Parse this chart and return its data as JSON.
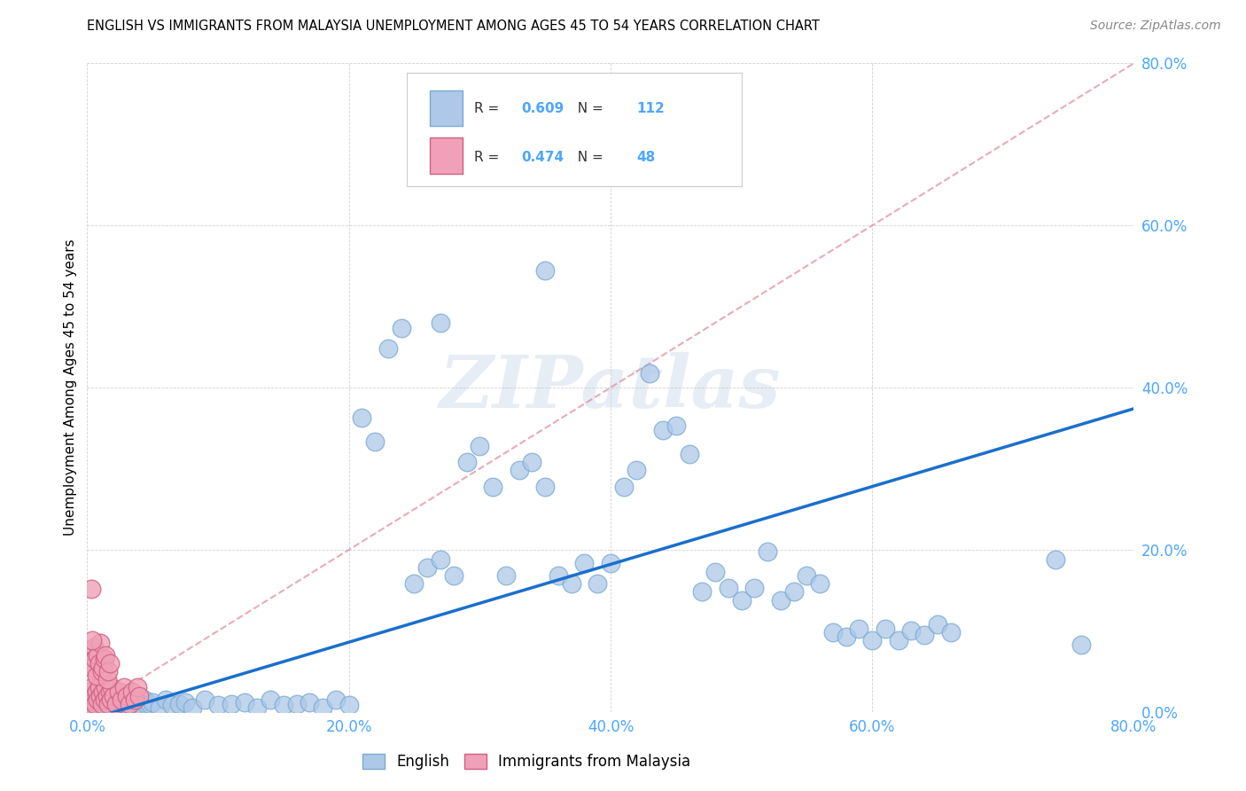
{
  "title": "ENGLISH VS IMMIGRANTS FROM MALAYSIA UNEMPLOYMENT AMONG AGES 45 TO 54 YEARS CORRELATION CHART",
  "source": "Source: ZipAtlas.com",
  "tick_color": "#4da6ff",
  "ylabel": "Unemployment Among Ages 45 to 54 years",
  "xlim": [
    0.0,
    0.8
  ],
  "ylim": [
    0.0,
    0.8
  ],
  "tick_labels": [
    "0.0%",
    "20.0%",
    "40.0%",
    "60.0%",
    "80.0%"
  ],
  "tick_vals": [
    0.0,
    0.2,
    0.4,
    0.6,
    0.8
  ],
  "english_color": "#adc8e8",
  "english_edge_color": "#7aaad0",
  "immigrant_color": "#f0a0b8",
  "immigrant_edge_color": "#d06080",
  "regression_english_color": "#1a6fcc",
  "regression_immigrant_color": "#e08898",
  "R_english": 0.609,
  "N_english": 112,
  "R_immigrant": 0.474,
  "N_immigrant": 48,
  "watermark": "ZIPatlas",
  "english_scatter_x": [
    0.001,
    0.002,
    0.003,
    0.003,
    0.004,
    0.004,
    0.005,
    0.005,
    0.006,
    0.006,
    0.007,
    0.007,
    0.008,
    0.008,
    0.009,
    0.009,
    0.01,
    0.01,
    0.011,
    0.012,
    0.013,
    0.014,
    0.015,
    0.016,
    0.017,
    0.018,
    0.019,
    0.02,
    0.021,
    0.022,
    0.024,
    0.026,
    0.028,
    0.03,
    0.032,
    0.034,
    0.036,
    0.038,
    0.04,
    0.042,
    0.044,
    0.046,
    0.048,
    0.05,
    0.055,
    0.06,
    0.065,
    0.07,
    0.075,
    0.08,
    0.09,
    0.1,
    0.11,
    0.12,
    0.13,
    0.14,
    0.15,
    0.16,
    0.17,
    0.18,
    0.19,
    0.2,
    0.21,
    0.22,
    0.23,
    0.24,
    0.25,
    0.26,
    0.27,
    0.28,
    0.29,
    0.3,
    0.31,
    0.32,
    0.33,
    0.34,
    0.35,
    0.36,
    0.37,
    0.38,
    0.39,
    0.4,
    0.41,
    0.42,
    0.43,
    0.44,
    0.45,
    0.46,
    0.47,
    0.48,
    0.49,
    0.5,
    0.51,
    0.52,
    0.53,
    0.54,
    0.55,
    0.56,
    0.57,
    0.58,
    0.59,
    0.6,
    0.61,
    0.62,
    0.63,
    0.64,
    0.65,
    0.66,
    0.74,
    0.76,
    0.27,
    0.35
  ],
  "english_scatter_y": [
    0.01,
    0.008,
    0.015,
    0.005,
    0.012,
    0.018,
    0.006,
    0.02,
    0.004,
    0.015,
    0.008,
    0.022,
    0.005,
    0.012,
    0.01,
    0.018,
    0.006,
    0.015,
    0.008,
    0.01,
    0.012,
    0.005,
    0.015,
    0.008,
    0.01,
    0.012,
    0.005,
    0.018,
    0.006,
    0.01,
    0.015,
    0.008,
    0.012,
    0.01,
    0.005,
    0.015,
    0.008,
    0.01,
    0.012,
    0.005,
    0.015,
    0.008,
    0.01,
    0.012,
    0.005,
    0.015,
    0.008,
    0.01,
    0.012,
    0.005,
    0.015,
    0.008,
    0.01,
    0.012,
    0.005,
    0.015,
    0.008,
    0.01,
    0.012,
    0.005,
    0.015,
    0.008,
    0.363,
    0.333,
    0.448,
    0.473,
    0.158,
    0.178,
    0.188,
    0.168,
    0.308,
    0.328,
    0.278,
    0.168,
    0.298,
    0.308,
    0.278,
    0.168,
    0.158,
    0.183,
    0.158,
    0.183,
    0.278,
    0.298,
    0.418,
    0.348,
    0.353,
    0.318,
    0.148,
    0.173,
    0.153,
    0.138,
    0.153,
    0.198,
    0.138,
    0.148,
    0.168,
    0.158,
    0.098,
    0.093,
    0.103,
    0.088,
    0.103,
    0.088,
    0.1,
    0.095,
    0.108,
    0.098,
    0.188,
    0.083,
    0.48,
    0.545
  ],
  "immigrant_scatter_x": [
    0.001,
    0.002,
    0.003,
    0.004,
    0.005,
    0.006,
    0.007,
    0.008,
    0.009,
    0.01,
    0.011,
    0.012,
    0.013,
    0.014,
    0.015,
    0.016,
    0.017,
    0.018,
    0.019,
    0.02,
    0.022,
    0.024,
    0.026,
    0.028,
    0.03,
    0.032,
    0.034,
    0.036,
    0.038,
    0.04,
    0.002,
    0.003,
    0.004,
    0.005,
    0.006,
    0.007,
    0.008,
    0.009,
    0.01,
    0.011,
    0.012,
    0.013,
    0.014,
    0.015,
    0.016,
    0.017,
    0.003,
    0.004
  ],
  "immigrant_scatter_y": [
    0.01,
    0.025,
    0.015,
    0.03,
    0.02,
    0.01,
    0.025,
    0.015,
    0.03,
    0.02,
    0.01,
    0.025,
    0.015,
    0.03,
    0.02,
    0.01,
    0.025,
    0.015,
    0.03,
    0.02,
    0.01,
    0.025,
    0.015,
    0.03,
    0.02,
    0.01,
    0.025,
    0.015,
    0.03,
    0.02,
    0.06,
    0.075,
    0.055,
    0.08,
    0.065,
    0.045,
    0.07,
    0.06,
    0.085,
    0.05,
    0.055,
    0.065,
    0.07,
    0.04,
    0.05,
    0.06,
    0.152,
    0.088
  ]
}
